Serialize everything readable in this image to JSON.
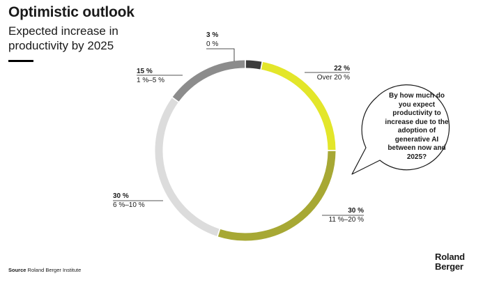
{
  "header": {
    "title": "Optimistic outlook",
    "subtitle": "Expected increase in productivity by 2025"
  },
  "chart_data": {
    "type": "pie",
    "donut": true,
    "title": "Optimistic outlook",
    "subtitle": "Expected increase in productivity by 2025",
    "slices": [
      {
        "label": "0 %",
        "value": 3,
        "value_label": "3 %",
        "color": "#3c3c3c"
      },
      {
        "label": "Over 20 %",
        "value": 22,
        "value_label": "22 %",
        "color": "#e3e62a"
      },
      {
        "label": "11 %–20 %",
        "value": 30,
        "value_label": "30 %",
        "color": "#a7a834"
      },
      {
        "label": "6 %–10 %",
        "value": 30,
        "value_label": "30 %",
        "color": "#dcdcdc"
      },
      {
        "label": "1 %–5 %",
        "value": 15,
        "value_label": "15 %",
        "color": "#8c8c8c"
      }
    ]
  },
  "callout": {
    "question": "By how much do you expect productivity to increase due to the adoption of generative AI between now and 2025?"
  },
  "footer": {
    "source_label": "Source",
    "source_text": "Roland Berger Institute",
    "logo_line1": "Roland",
    "logo_line2": "Berger"
  }
}
